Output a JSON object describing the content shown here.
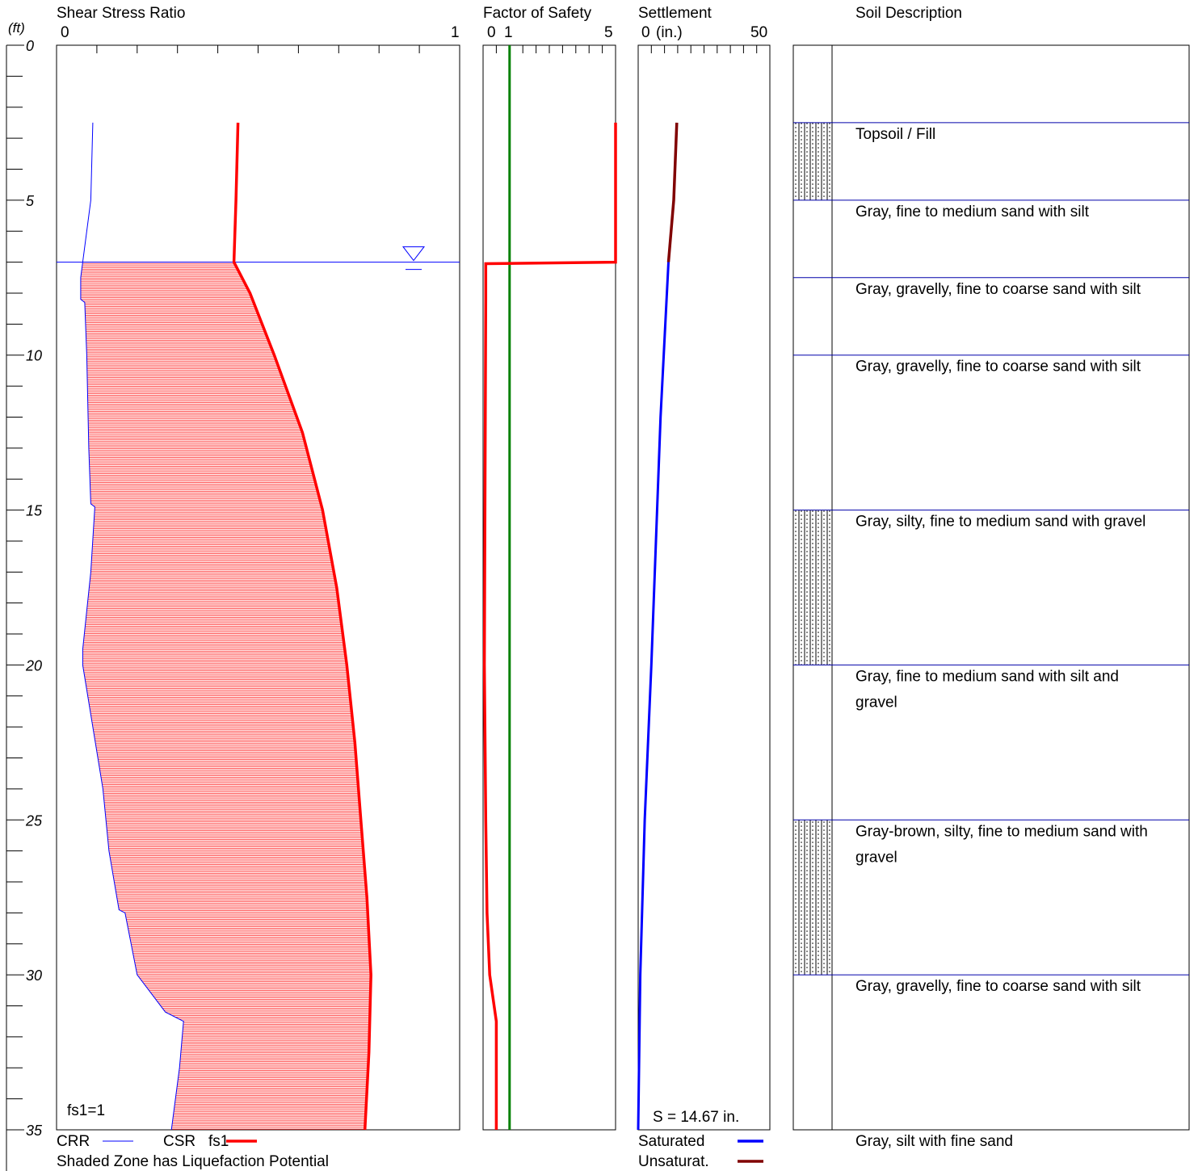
{
  "colors": {
    "crr": "#0000ff",
    "csr": "#ff0000",
    "shade": "#ff0000",
    "fs_reference": "#008000",
    "saturated": "#0000ff",
    "unsaturated": "#800000",
    "layer_line": "#0000aa"
  },
  "depth_axis": {
    "unit_label": "(ft)",
    "range": [
      0,
      35
    ],
    "major_ticks": [
      0,
      5,
      10,
      15,
      20,
      25,
      30,
      35
    ],
    "minor_step": 1
  },
  "water_table_depth": 7,
  "chart_data": [
    {
      "type": "line",
      "title": "Shear Stress Ratio",
      "xlim": [
        0,
        1
      ],
      "x_ticks": [
        0,
        1
      ],
      "ylim": [
        0,
        35
      ],
      "y_reversed": true,
      "series": [
        {
          "name": "CRR",
          "color": "#0000ff",
          "points": [
            [
              0.09,
              2.5
            ],
            [
              0.085,
              5
            ],
            [
              0.065,
              7
            ],
            [
              0.06,
              7.5
            ],
            [
              0.06,
              8.2
            ],
            [
              0.07,
              8.3
            ],
            [
              0.075,
              10
            ],
            [
              0.08,
              13
            ],
            [
              0.085,
              14.8
            ],
            [
              0.095,
              14.9
            ],
            [
              0.085,
              17
            ],
            [
              0.065,
              19.5
            ],
            [
              0.065,
              20
            ],
            [
              0.09,
              22
            ],
            [
              0.115,
              24
            ],
            [
              0.13,
              26
            ],
            [
              0.155,
              27.9
            ],
            [
              0.17,
              28
            ],
            [
              0.2,
              30
            ],
            [
              0.27,
              31.2
            ],
            [
              0.315,
              31.5
            ],
            [
              0.305,
              33
            ],
            [
              0.295,
              34
            ],
            [
              0.285,
              35
            ]
          ]
        },
        {
          "name": "CSR fs1",
          "color": "#ff0000",
          "points": [
            [
              0.45,
              2.5
            ],
            [
              0.445,
              5
            ],
            [
              0.44,
              7
            ],
            [
              0.48,
              8
            ],
            [
              0.54,
              10
            ],
            [
              0.61,
              12.5
            ],
            [
              0.66,
              15
            ],
            [
              0.695,
              17.5
            ],
            [
              0.72,
              20
            ],
            [
              0.74,
              22.5
            ],
            [
              0.755,
              25
            ],
            [
              0.77,
              27.5
            ],
            [
              0.78,
              30
            ],
            [
              0.775,
              32.5
            ],
            [
              0.765,
              35
            ]
          ]
        }
      ],
      "annotations": [
        "fs1=1"
      ],
      "legend": [
        "CRR",
        "CSR",
        "fs1"
      ],
      "footnote": "Shaded Zone has Liquefaction Potential"
    },
    {
      "type": "line",
      "title": "Factor of Safety",
      "xlim": [
        0,
        5
      ],
      "x_ticks": [
        0,
        1,
        5
      ],
      "ylim": [
        0,
        35
      ],
      "y_reversed": true,
      "reference_line": {
        "x": 1,
        "color": "#008000"
      },
      "series": [
        {
          "name": "fs1",
          "color": "#ff0000",
          "points": [
            [
              5,
              2.5
            ],
            [
              5,
              7
            ],
            [
              0.1,
              7.05
            ],
            [
              0.1,
              8.2
            ],
            [
              0.05,
              20
            ],
            [
              0.1,
              25
            ],
            [
              0.15,
              28
            ],
            [
              0.25,
              30
            ],
            [
              0.5,
              31.5
            ],
            [
              0.5,
              35
            ]
          ]
        }
      ]
    },
    {
      "type": "line",
      "title": "Settlement",
      "xlabel": "(in.)",
      "xlim": [
        0,
        50
      ],
      "x_ticks": [
        0,
        50
      ],
      "ylim": [
        0,
        35
      ],
      "y_reversed": true,
      "series": [
        {
          "name": "Unsaturat.",
          "color": "#800000",
          "points": [
            [
              14.67,
              2.5
            ],
            [
              13.5,
              5
            ],
            [
              11.5,
              7
            ]
          ]
        },
        {
          "name": "Saturated",
          "color": "#0000ff",
          "points": [
            [
              11.5,
              7
            ],
            [
              8.5,
              12
            ],
            [
              5,
              20
            ],
            [
              2.5,
              25
            ],
            [
              0.8,
              30
            ],
            [
              0,
              35
            ]
          ]
        }
      ],
      "annotation": "S = 14.67 in."
    }
  ],
  "soil_column": {
    "title": "Soil Description",
    "layers": [
      {
        "top": 2.5,
        "bottom": 5,
        "hatched": true,
        "lines": [
          "Topsoil / Fill"
        ]
      },
      {
        "top": 5,
        "bottom": 7.5,
        "hatched": false,
        "lines": [
          "Gray, fine to medium sand with silt"
        ]
      },
      {
        "top": 7.5,
        "bottom": 10,
        "hatched": false,
        "lines": [
          "Gray, gravelly, fine to coarse sand with silt"
        ]
      },
      {
        "top": 10,
        "bottom": 15,
        "hatched": false,
        "lines": [
          "Gray, gravelly, fine to coarse sand with silt"
        ]
      },
      {
        "top": 15,
        "bottom": 20,
        "hatched": true,
        "lines": [
          "Gray, silty, fine to medium sand with gravel"
        ]
      },
      {
        "top": 20,
        "bottom": 25,
        "hatched": false,
        "lines": [
          "Gray, fine to medium sand with silt and",
          "gravel"
        ]
      },
      {
        "top": 25,
        "bottom": 30,
        "hatched": true,
        "lines": [
          "Gray-brown, silty, fine to medium sand with",
          "gravel"
        ]
      },
      {
        "top": 30,
        "bottom": 35,
        "hatched": false,
        "lines": [
          "Gray, gravelly, fine to coarse sand with silt"
        ]
      },
      {
        "top": 35,
        "bottom": 35,
        "hatched": false,
        "lines": [
          "Gray, silt with fine sand"
        ]
      }
    ]
  },
  "legend": {
    "crr": "CRR",
    "csr": "CSR",
    "fs1": "fs1",
    "note": "Shaded Zone has Liquefaction Potential",
    "saturated": "Saturated",
    "unsaturated": "Unsaturat."
  },
  "labels": {
    "fs_annotation": "fs1=1",
    "settlement_total": "S = 14.67 in.",
    "shear_tick_0": "0",
    "shear_tick_1": "1",
    "fos_tick_0": "0",
    "fos_tick_1": "1",
    "fos_tick_5": "5",
    "settle_tick_0": "0",
    "settle_unit": "(in.)",
    "settle_tick_50": "50"
  }
}
